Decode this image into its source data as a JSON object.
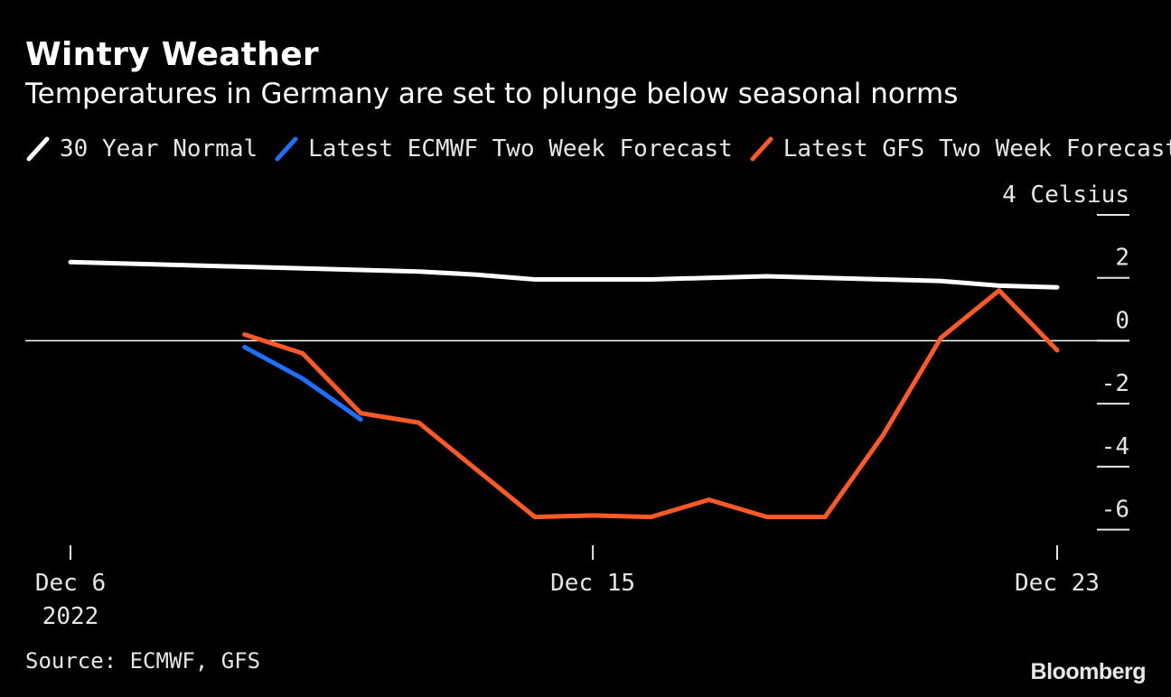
{
  "header": {
    "title": "Wintry Weather",
    "subtitle": "Temperatures in Germany are set to plunge below seasonal norms"
  },
  "legend": [
    {
      "label": "30 Year Normal",
      "color": "#ffffff"
    },
    {
      "label": "Latest ECMWF Two Week Forecast",
      "color": "#1f6fff"
    },
    {
      "label": "Latest GFS Two Week Forecast",
      "color": "#ff5a26"
    }
  ],
  "footer": {
    "source": "Source: ECMWF, GFS",
    "brand": "Bloomberg"
  },
  "chart_data": {
    "type": "line",
    "title": "Wintry Weather",
    "subtitle": "Temperatures in Germany are set to plunge below seasonal norms",
    "ylabel": "Celsius",
    "ylim": [
      -6.5,
      4
    ],
    "y_ticks": [
      4,
      2,
      0,
      -2,
      -4,
      -6
    ],
    "y_tick_labels": [
      "4 Celsius",
      "2",
      "0",
      "-2",
      "-4",
      "-6"
    ],
    "x_ticks": [
      {
        "x": "2022-12-06",
        "label": [
          "Dec 6",
          "2022"
        ]
      },
      {
        "x": "2022-12-15",
        "label": [
          "Dec 15"
        ]
      },
      {
        "x": "2022-12-23",
        "label": [
          "Dec 23"
        ]
      }
    ],
    "xlim": [
      "2022-12-06",
      "2022-12-23"
    ],
    "zero_line": true,
    "series": [
      {
        "name": "30 Year Normal",
        "color": "#ffffff",
        "x": [
          "2022-12-06",
          "2022-12-07",
          "2022-12-08",
          "2022-12-09",
          "2022-12-10",
          "2022-12-11",
          "2022-12-12",
          "2022-12-13",
          "2022-12-14",
          "2022-12-15",
          "2022-12-16",
          "2022-12-17",
          "2022-12-18",
          "2022-12-19",
          "2022-12-20",
          "2022-12-21",
          "2022-12-22",
          "2022-12-23"
        ],
        "values": [
          2.5,
          2.45,
          2.4,
          2.35,
          2.3,
          2.25,
          2.2,
          2.1,
          1.95,
          1.95,
          1.95,
          2.0,
          2.05,
          2.0,
          1.95,
          1.9,
          1.75,
          1.7
        ]
      },
      {
        "name": "Latest ECMWF Two Week Forecast",
        "color": "#1f6fff",
        "x": [
          "2022-12-09",
          "2022-12-10",
          "2022-12-11"
        ],
        "values": [
          -0.2,
          -1.2,
          -2.5
        ]
      },
      {
        "name": "Latest GFS Two Week Forecast",
        "color": "#ff5a26",
        "x": [
          "2022-12-09",
          "2022-12-10",
          "2022-12-11",
          "2022-12-12",
          "2022-12-13",
          "2022-12-14",
          "2022-12-15",
          "2022-12-16",
          "2022-12-17",
          "2022-12-18",
          "2022-12-19",
          "2022-12-20",
          "2022-12-21",
          "2022-12-22",
          "2022-12-23"
        ],
        "values": [
          0.2,
          -0.4,
          -2.3,
          -2.6,
          -4.1,
          -5.6,
          -5.55,
          -5.6,
          -5.05,
          -5.6,
          -5.6,
          -3.0,
          0.1,
          1.6,
          -0.3
        ]
      }
    ]
  }
}
